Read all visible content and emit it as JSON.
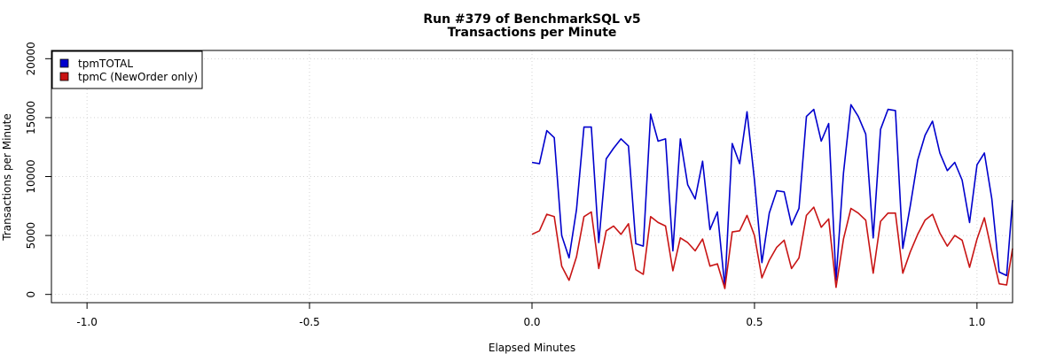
{
  "chart_data": {
    "type": "line",
    "title": "Run #379 of BenchmarkSQL v5",
    "subtitle": "Transactions per Minute",
    "xlabel": "Elapsed Minutes",
    "ylabel": "Transactions per Minute",
    "xlim": [
      -1.08,
      1.08
    ],
    "ylim": [
      -700,
      20700
    ],
    "xticks": [
      -1.0,
      -0.5,
      0.0,
      0.5,
      1.0
    ],
    "xtick_labels": [
      "-1.0",
      "-0.5",
      "0.0",
      "0.5",
      "1.0"
    ],
    "yticks": [
      0,
      5000,
      10000,
      15000,
      20000
    ],
    "ytick_labels": [
      "0",
      "5000",
      "10000",
      "15000",
      "20000"
    ],
    "grid": true,
    "legend_position": "top-left",
    "x": [
      0.0,
      0.0167,
      0.0333,
      0.05,
      0.0667,
      0.0833,
      0.1,
      0.1167,
      0.1333,
      0.15,
      0.1667,
      0.1833,
      0.2,
      0.2167,
      0.2333,
      0.25,
      0.2667,
      0.2833,
      0.3,
      0.3167,
      0.3333,
      0.35,
      0.3667,
      0.3833,
      0.4,
      0.4167,
      0.4333,
      0.45,
      0.4667,
      0.4833,
      0.5,
      0.5167,
      0.5333,
      0.55,
      0.5667,
      0.5833,
      0.6,
      0.6167,
      0.6333,
      0.65,
      0.6667,
      0.6833,
      0.7,
      0.7167,
      0.7333,
      0.75,
      0.7667,
      0.7833,
      0.8,
      0.8167,
      0.8333,
      0.85,
      0.8667,
      0.8833,
      0.9,
      0.9167,
      0.9333,
      0.95,
      0.9667,
      0.9833,
      1.0,
      1.0167,
      1.0333,
      1.05,
      1.0667,
      1.0833
    ],
    "series": [
      {
        "name": "tpmTOTAL",
        "color": "#0000cd",
        "values": [
          11200,
          11100,
          13900,
          13300,
          5000,
          3100,
          7200,
          14200,
          14200,
          4400,
          11500,
          12400,
          13200,
          12600,
          4300,
          4100,
          15300,
          13000,
          13200,
          3700,
          13200,
          9300,
          8100,
          11300,
          5500,
          7000,
          600,
          12800,
          11100,
          15500,
          9700,
          2700,
          6900,
          8800,
          8700,
          5900,
          7300,
          15100,
          15700,
          13000,
          14500,
          1200,
          10300,
          16100,
          15100,
          13600,
          4800,
          14000,
          15700,
          15600,
          3900,
          7500,
          11400,
          13500,
          14700,
          12000,
          10500,
          11200,
          9700,
          6100,
          11000,
          12000,
          8100,
          1900,
          1600,
          8000
        ]
      },
      {
        "name": "tpmC (NewOrder only)",
        "color": "#c81414",
        "values": [
          5100,
          5400,
          6800,
          6600,
          2400,
          1200,
          3200,
          6600,
          7000,
          2200,
          5400,
          5800,
          5100,
          6000,
          2100,
          1700,
          6600,
          6100,
          5800,
          2000,
          4800,
          4400,
          3700,
          4700,
          2400,
          2600,
          500,
          5300,
          5400,
          6700,
          5000,
          1400,
          2900,
          4000,
          4600,
          2200,
          3100,
          6700,
          7400,
          5700,
          6400,
          600,
          4700,
          7300,
          6900,
          6300,
          1800,
          6200,
          6900,
          6900,
          1800,
          3600,
          5100,
          6300,
          6800,
          5200,
          4100,
          5000,
          4600,
          2300,
          4700,
          6500,
          3600,
          900,
          800,
          3900
        ]
      }
    ]
  }
}
